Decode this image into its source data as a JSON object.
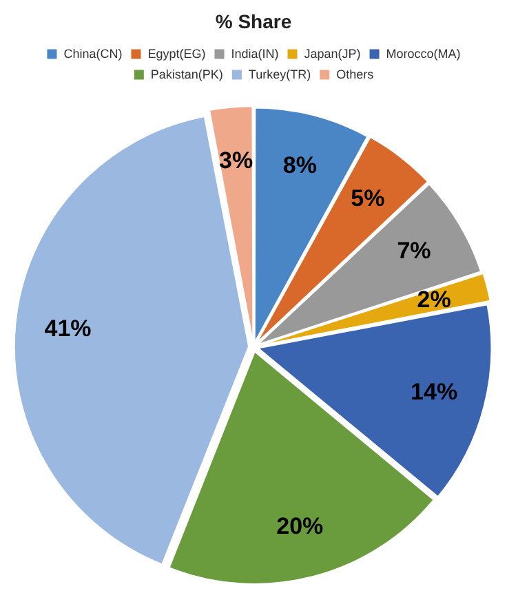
{
  "chart_data": {
    "type": "pie",
    "title": "% Share",
    "categories": [
      "China(CN)",
      "Egypt(EG)",
      "India(IN)",
      "Japan(JP)",
      "Morocco(MA)",
      "Pakistan(PK)",
      "Turkey(TR)",
      "Others"
    ],
    "values": [
      8,
      5,
      7,
      2,
      14,
      20,
      41,
      3
    ],
    "colors": [
      "#4a86c5",
      "#d9692a",
      "#999999",
      "#e5a90f",
      "#3a63b0",
      "#6a9c3e",
      "#9bb9e0",
      "#f0a88a"
    ],
    "value_labels": [
      "8%",
      "5%",
      "7%",
      "2%",
      "14%",
      "20%",
      "41%",
      "3%"
    ],
    "legend": "top"
  }
}
